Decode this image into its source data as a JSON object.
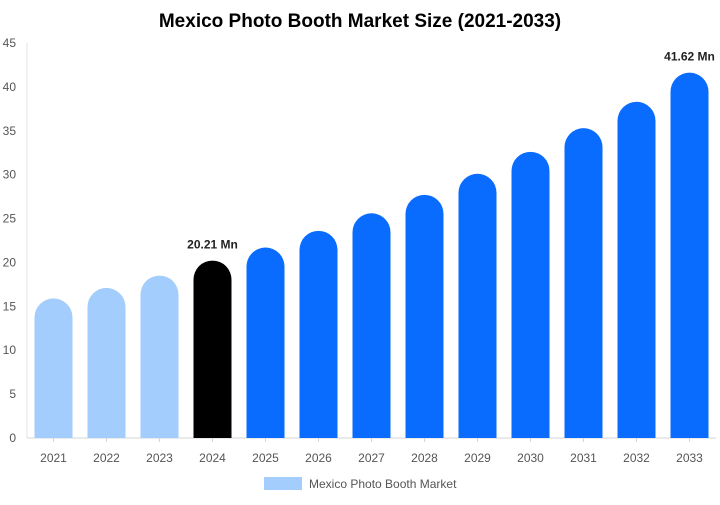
{
  "chart_data": {
    "type": "bar",
    "title": "Mexico Photo Booth Market Size (2021-2033)",
    "categories": [
      "2021",
      "2022",
      "2023",
      "2024",
      "2025",
      "2026",
      "2027",
      "2028",
      "2029",
      "2030",
      "2031",
      "2032",
      "2033"
    ],
    "series": [
      {
        "name": "Mexico Photo Booth Market",
        "values": [
          15.9,
          17.1,
          18.5,
          20.21,
          21.7,
          23.6,
          25.6,
          27.7,
          30.1,
          32.6,
          35.3,
          38.3,
          41.62
        ]
      }
    ],
    "ylim": [
      0,
      45
    ],
    "yticks": [
      0,
      5,
      10,
      15,
      20,
      25,
      30,
      35,
      40,
      45
    ],
    "data_labels": [
      {
        "category": "2024",
        "text": "20.21 Mn"
      },
      {
        "category": "2033",
        "text": "41.62 Mn"
      }
    ],
    "bar_colors": {
      "historical": "#a3cdfc",
      "base_year": "#000000",
      "forecast": "#0a6cff"
    },
    "historical_categories": [
      "2021",
      "2022",
      "2023"
    ],
    "base_year_category": "2024",
    "grid": false,
    "legend_position": "bottom"
  }
}
